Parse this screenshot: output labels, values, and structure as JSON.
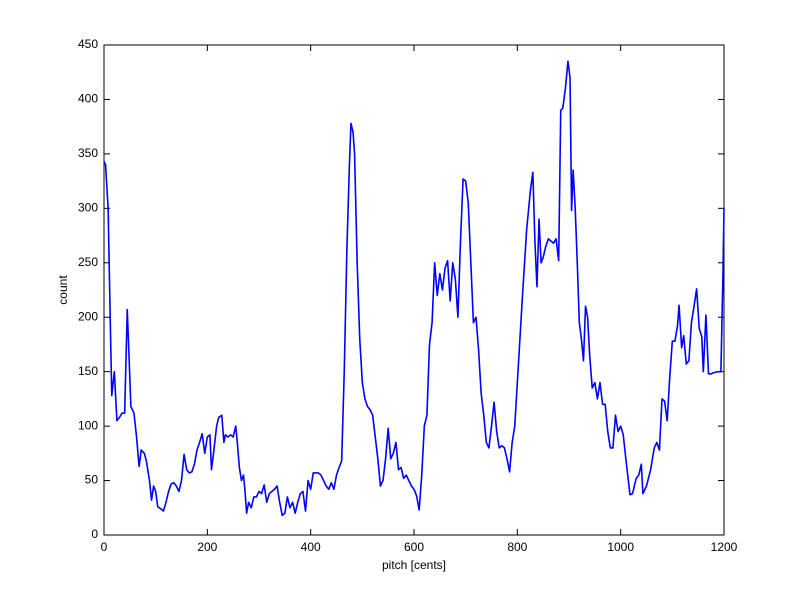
{
  "chart_data": {
    "type": "line",
    "x_label": "pitch [cents]",
    "y_label": "count",
    "x": [
      0,
      3,
      8,
      12,
      15,
      20,
      25,
      30,
      35,
      40,
      45,
      48,
      52,
      58,
      63,
      68,
      72,
      78,
      82,
      88,
      92,
      96,
      100,
      104,
      110,
      115,
      120,
      125,
      130,
      135,
      140,
      145,
      150,
      155,
      160,
      165,
      170,
      175,
      180,
      185,
      190,
      195,
      200,
      205,
      208,
      212,
      218,
      222,
      228,
      232,
      235,
      240,
      245,
      250,
      255,
      258,
      262,
      266,
      270,
      273,
      276,
      280,
      285,
      290,
      295,
      300,
      305,
      310,
      315,
      320,
      325,
      330,
      335,
      340,
      345,
      350,
      355,
      360,
      365,
      370,
      375,
      380,
      385,
      390,
      395,
      400,
      405,
      410,
      415,
      420,
      425,
      430,
      435,
      440,
      445,
      450,
      455,
      460,
      465,
      470,
      475,
      478,
      482,
      485,
      490,
      495,
      500,
      505,
      510,
      515,
      520,
      525,
      530,
      535,
      540,
      545,
      550,
      555,
      560,
      565,
      570,
      575,
      580,
      585,
      590,
      595,
      600,
      605,
      610,
      615,
      620,
      625,
      630,
      635,
      640,
      645,
      650,
      655,
      660,
      665,
      670,
      675,
      680,
      685,
      690,
      695,
      700,
      705,
      710,
      715,
      720,
      725,
      730,
      735,
      740,
      745,
      750,
      755,
      760,
      765,
      770,
      775,
      780,
      785,
      790,
      795,
      800,
      805,
      810,
      818,
      825,
      830,
      834,
      838,
      842,
      846,
      850,
      855,
      860,
      865,
      870,
      875,
      880,
      884,
      888,
      893,
      898,
      902,
      905,
      908,
      912,
      916,
      920,
      924,
      928,
      932,
      936,
      940,
      945,
      950,
      955,
      960,
      965,
      970,
      975,
      980,
      985,
      990,
      995,
      1000,
      1005,
      1010,
      1018,
      1023,
      1030,
      1035,
      1040,
      1043,
      1050,
      1058,
      1065,
      1070,
      1075,
      1080,
      1085,
      1090,
      1095,
      1100,
      1105,
      1110,
      1113,
      1118,
      1122,
      1127,
      1132,
      1137,
      1142,
      1147,
      1152,
      1157,
      1160,
      1165,
      1170,
      1175,
      1180,
      1188,
      1194,
      1198,
      1200
    ],
    "series": [
      {
        "color": "#0000ff",
        "values": [
          343,
          340,
          300,
          200,
          128,
          150,
          105,
          108,
          112,
          112,
          207,
          170,
          118,
          112,
          90,
          63,
          78,
          75,
          68,
          50,
          32,
          45,
          40,
          26,
          24,
          22,
          30,
          40,
          47,
          48,
          45,
          40,
          50,
          74,
          60,
          57,
          58,
          65,
          78,
          85,
          93,
          75,
          90,
          92,
          60,
          75,
          100,
          108,
          110,
          85,
          92,
          90,
          92,
          90,
          100,
          85,
          62,
          50,
          55,
          40,
          20,
          30,
          25,
          35,
          35,
          40,
          38,
          46,
          30,
          38,
          40,
          42,
          45,
          30,
          18,
          20,
          35,
          25,
          30,
          20,
          30,
          38,
          40,
          22,
          50,
          42,
          57,
          57,
          57,
          55,
          50,
          45,
          42,
          48,
          42,
          55,
          62,
          68,
          150,
          260,
          340,
          378,
          370,
          350,
          250,
          180,
          140,
          125,
          118,
          115,
          110,
          90,
          70,
          45,
          50,
          70,
          98,
          70,
          75,
          85,
          60,
          62,
          52,
          55,
          50,
          45,
          42,
          36,
          23,
          55,
          100,
          110,
          175,
          195,
          250,
          220,
          240,
          225,
          245,
          252,
          215,
          250,
          235,
          200,
          270,
          327,
          325,
          305,
          250,
          195,
          200,
          170,
          130,
          110,
          85,
          80,
          100,
          122,
          95,
          80,
          82,
          80,
          70,
          58,
          85,
          100,
          140,
          180,
          220,
          280,
          315,
          333,
          270,
          228,
          290,
          250,
          255,
          265,
          272,
          270,
          268,
          272,
          252,
          390,
          392,
          410,
          435,
          420,
          298,
          335,
          300,
          250,
          195,
          180,
          160,
          210,
          200,
          165,
          135,
          140,
          125,
          140,
          120,
          120,
          95,
          80,
          80,
          110,
          95,
          100,
          92,
          70,
          37,
          38,
          52,
          55,
          65,
          38,
          45,
          60,
          80,
          85,
          78,
          125,
          123,
          105,
          145,
          178,
          178,
          192,
          211,
          172,
          183,
          157,
          160,
          195,
          210,
          226,
          190,
          182,
          150,
          202,
          148,
          148,
          149,
          150,
          150,
          240,
          300
        ]
      }
    ],
    "xlim": [
      0,
      1200
    ],
    "xticks": [
      0,
      200,
      400,
      600,
      800,
      1000,
      1200
    ],
    "ylim": [
      0,
      450
    ],
    "yticks": [
      0,
      50,
      100,
      150,
      200,
      250,
      300,
      350,
      400,
      450
    ],
    "grid": false
  }
}
